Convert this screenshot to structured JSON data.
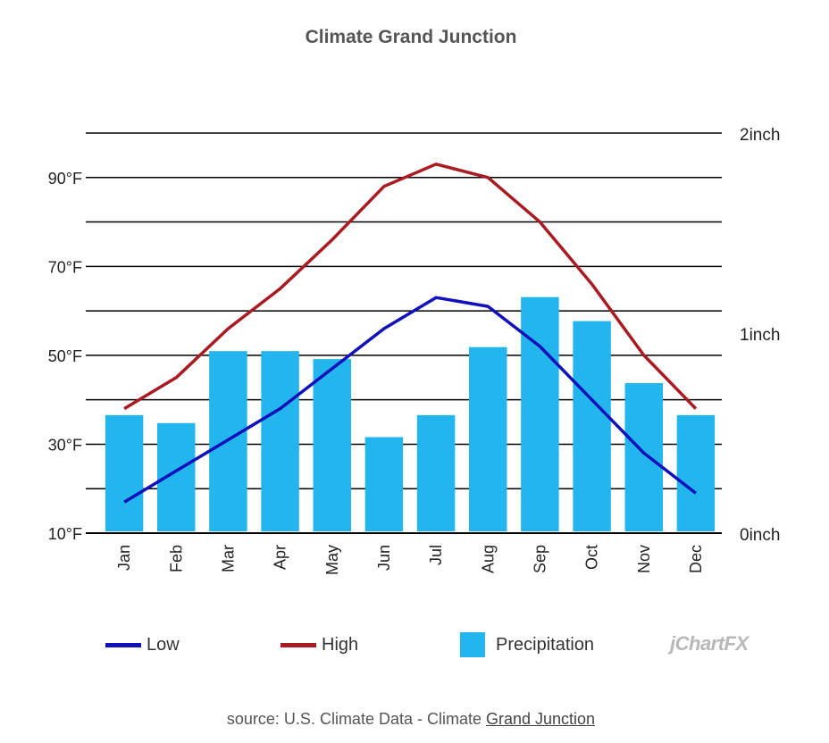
{
  "title": "Climate Grand Junction",
  "legend": {
    "low": "Low",
    "high": "High",
    "precip": "Precipitation"
  },
  "logo_text": "jChartFX",
  "source": {
    "prefix": "source: U.S. Climate Data - Climate ",
    "link": "Grand Junction"
  },
  "colors": {
    "low": "#1111bb",
    "high": "#aa1a22",
    "precip": "#22b5ee",
    "grid": "#000000"
  },
  "chart_data": {
    "type": "bar",
    "categories": [
      "Jan",
      "Feb",
      "Mar",
      "Apr",
      "May",
      "Jun",
      "Jul",
      "Aug",
      "Sep",
      "Oct",
      "Nov",
      "Dec"
    ],
    "series": [
      {
        "name": "Precipitation",
        "type": "bar",
        "axis": "right",
        "values": [
          0.59,
          0.55,
          0.91,
          0.91,
          0.87,
          0.48,
          0.59,
          0.93,
          1.18,
          1.06,
          0.75,
          0.59
        ]
      },
      {
        "name": "Low",
        "type": "line",
        "axis": "left",
        "values": [
          17,
          24,
          31,
          38,
          47,
          56,
          63,
          61,
          52,
          40,
          28,
          19
        ]
      },
      {
        "name": "High",
        "type": "line",
        "axis": "left",
        "values": [
          38,
          45,
          56,
          65,
          76,
          88,
          93,
          90,
          80,
          66,
          50,
          38
        ]
      }
    ],
    "y_left": {
      "ylim": [
        10,
        100
      ],
      "ticks": [
        10,
        30,
        50,
        70,
        90
      ],
      "tick_labels": [
        "10°F",
        "30°F",
        "50°F",
        "70°F",
        "90°F"
      ]
    },
    "y_right": {
      "ylim": [
        0,
        2
      ],
      "ticks": [
        0,
        1,
        2
      ],
      "tick_labels": [
        "0inch",
        "1inch",
        "2inch"
      ]
    },
    "grid": true,
    "legend_position": "bottom"
  }
}
